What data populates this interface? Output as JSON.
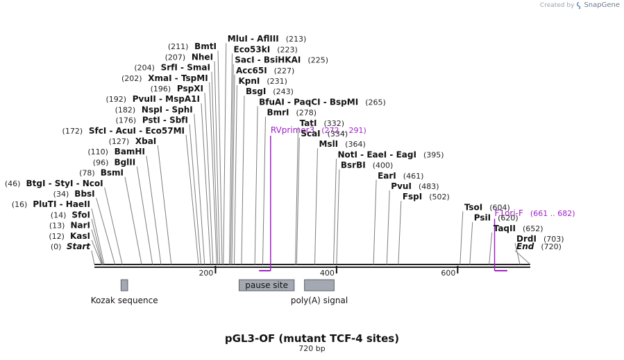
{
  "watermark": {
    "prefix": "Created by",
    "brand": "SnapGene"
  },
  "title": "pGL3-OF (mutant TCF-4 sites)",
  "length_label": "720 bp",
  "sequence_length": 720,
  "colors": {
    "primer": "#a020c8",
    "feature_fill": "#a4a8b2",
    "backbone": "#222222"
  },
  "ruler": [
    {
      "pos": 200,
      "label": "200"
    },
    {
      "pos": 400,
      "label": "400"
    },
    {
      "pos": 600,
      "label": "600"
    }
  ],
  "sites": [
    {
      "pos": 0,
      "pos_label": "(0)",
      "name": "Start",
      "italic": true
    },
    {
      "pos": 12,
      "pos_label": "(12)",
      "name": "KasI"
    },
    {
      "pos": 13,
      "pos_label": "(13)",
      "name": "NarI"
    },
    {
      "pos": 14,
      "pos_label": "(14)",
      "name": "SfoI"
    },
    {
      "pos": 16,
      "pos_label": "(16)",
      "name": "PluTI  -  HaeII"
    },
    {
      "pos": 34,
      "pos_label": "(34)",
      "name": "BbsI"
    },
    {
      "pos": 46,
      "pos_label": "(46)",
      "name": "BtgI  -  StyI  -  NcoI"
    },
    {
      "pos": 78,
      "pos_label": "(78)",
      "name": "BsmI"
    },
    {
      "pos": 96,
      "pos_label": "(96)",
      "name": "BglII"
    },
    {
      "pos": 110,
      "pos_label": "(110)",
      "name": "BamHI"
    },
    {
      "pos": 127,
      "pos_label": "(127)",
      "name": "XbaI"
    },
    {
      "pos": 172,
      "pos_label": "(172)",
      "name": "SfcI  -  AcuI  -  Eco57MI"
    },
    {
      "pos": 176,
      "pos_label": "(176)",
      "name": "PstI  -  SbfI"
    },
    {
      "pos": 182,
      "pos_label": "(182)",
      "name": "NspI  -  SphI"
    },
    {
      "pos": 192,
      "pos_label": "(192)",
      "name": "PvuII  -  MspA1I"
    },
    {
      "pos": 196,
      "pos_label": "(196)",
      "name": "PspXI"
    },
    {
      "pos": 202,
      "pos_label": "(202)",
      "name": "XmaI  -  TspMI"
    },
    {
      "pos": 204,
      "pos_label": "(204)",
      "name": "SrfI  -  SmaI"
    },
    {
      "pos": 207,
      "pos_label": "(207)",
      "name": "NheI"
    },
    {
      "pos": 211,
      "pos_label": "(211)",
      "name": "BmtI"
    },
    {
      "pos": 213,
      "pos_label": "(213)",
      "name": "MluI  -  AflIII"
    },
    {
      "pos": 223,
      "pos_label": "(223)",
      "name": "Eco53kI"
    },
    {
      "pos": 225,
      "pos_label": "(225)",
      "name": "SacI  -  BsiHKAI"
    },
    {
      "pos": 227,
      "pos_label": "(227)",
      "name": "Acc65I"
    },
    {
      "pos": 231,
      "pos_label": "(231)",
      "name": "KpnI"
    },
    {
      "pos": 243,
      "pos_label": "(243)",
      "name": "BsgI"
    },
    {
      "pos": 265,
      "pos_label": "(265)",
      "name": "BfuAI  -  PaqCI  -  BspMI"
    },
    {
      "pos": 278,
      "pos_label": "(278)",
      "name": "BmrI"
    },
    {
      "pos": 332,
      "pos_label": "(332)",
      "name": "TatI"
    },
    {
      "pos": 334,
      "pos_label": "(334)",
      "name": "ScaI"
    },
    {
      "pos": 364,
      "pos_label": "(364)",
      "name": "MslI"
    },
    {
      "pos": 395,
      "pos_label": "(395)",
      "name": "NotI  -  EaeI  -  EagI"
    },
    {
      "pos": 400,
      "pos_label": "(400)",
      "name": "BsrBI"
    },
    {
      "pos": 461,
      "pos_label": "(461)",
      "name": "EarI"
    },
    {
      "pos": 483,
      "pos_label": "(483)",
      "name": "PvuI"
    },
    {
      "pos": 502,
      "pos_label": "(502)",
      "name": "FspI"
    },
    {
      "pos": 604,
      "pos_label": "(604)",
      "name": "TsoI"
    },
    {
      "pos": 620,
      "pos_label": "(620)",
      "name": "PsiI"
    },
    {
      "pos": 652,
      "pos_label": "(652)",
      "name": "TaqII"
    },
    {
      "pos": 703,
      "pos_label": "(703)",
      "name": "DrdI"
    },
    {
      "pos": 720,
      "pos_label": "(720)",
      "name": "End",
      "italic": true
    }
  ],
  "primers": [
    {
      "name": "RVprimer3",
      "range_label": "(272 .. 291)",
      "start": 272,
      "end": 291
    },
    {
      "name": "F1ori-F",
      "range_label": "(661 .. 682)",
      "start": 661,
      "end": 682
    }
  ],
  "features": [
    {
      "name": "Kozak sequence",
      "start": 44,
      "end": 55
    },
    {
      "name": "pause site",
      "start": 239,
      "end": 330
    },
    {
      "name": "poly(A) signal",
      "start": 347,
      "end": 396
    }
  ]
}
